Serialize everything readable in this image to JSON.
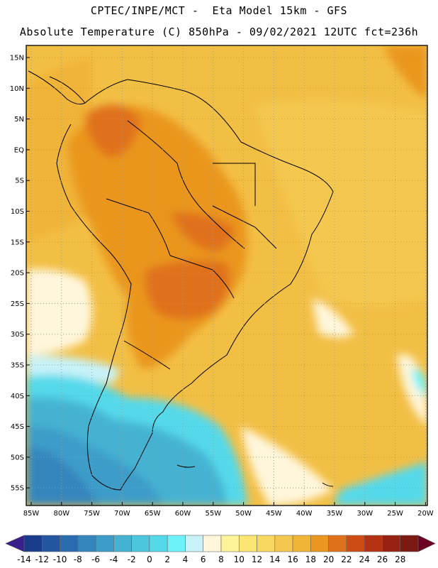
{
  "header": {
    "line1": "CPTEC/INPE/MCT -  Eta Model 15km - GFS",
    "line2": "Absolute Temperature (C) 850hPa - 09/02/2021 12UTC fct=236h"
  },
  "map": {
    "lat_labels": [
      "15N",
      "10N",
      "5N",
      "EQ",
      "5S",
      "10S",
      "15S",
      "20S",
      "25S",
      "30S",
      "35S",
      "40S",
      "45S",
      "50S",
      "55S"
    ],
    "lon_labels": [
      "85W",
      "80W",
      "75W",
      "70W",
      "65W",
      "60W",
      "55W",
      "50W",
      "45W",
      "40W",
      "35W",
      "30W",
      "25W",
      "20W"
    ]
  },
  "colorbar": {
    "labels": [
      "-14",
      "-12",
      "-10",
      "-8",
      "-6",
      "-4",
      "-2",
      "0",
      "2",
      "4",
      "6",
      "8",
      "10",
      "12",
      "14",
      "16",
      "18",
      "20",
      "22",
      "24",
      "26",
      "28"
    ],
    "colors": [
      "#1a3c8c",
      "#2455a0",
      "#2a6cb0",
      "#3585bd",
      "#3d9cc8",
      "#45b2d2",
      "#4cc6dd",
      "#55d9ea",
      "#6ef2fa",
      "#c8f2f8",
      "#fff6dc",
      "#fff39a",
      "#fce673",
      "#f8d860",
      "#f4c850",
      "#f0b437",
      "#ea961f",
      "#e0711b",
      "#cc4c14",
      "#b43111",
      "#972212",
      "#7a1a13"
    ],
    "left_cap": "#3a1f8a",
    "right_cap": "#6b0020"
  }
}
